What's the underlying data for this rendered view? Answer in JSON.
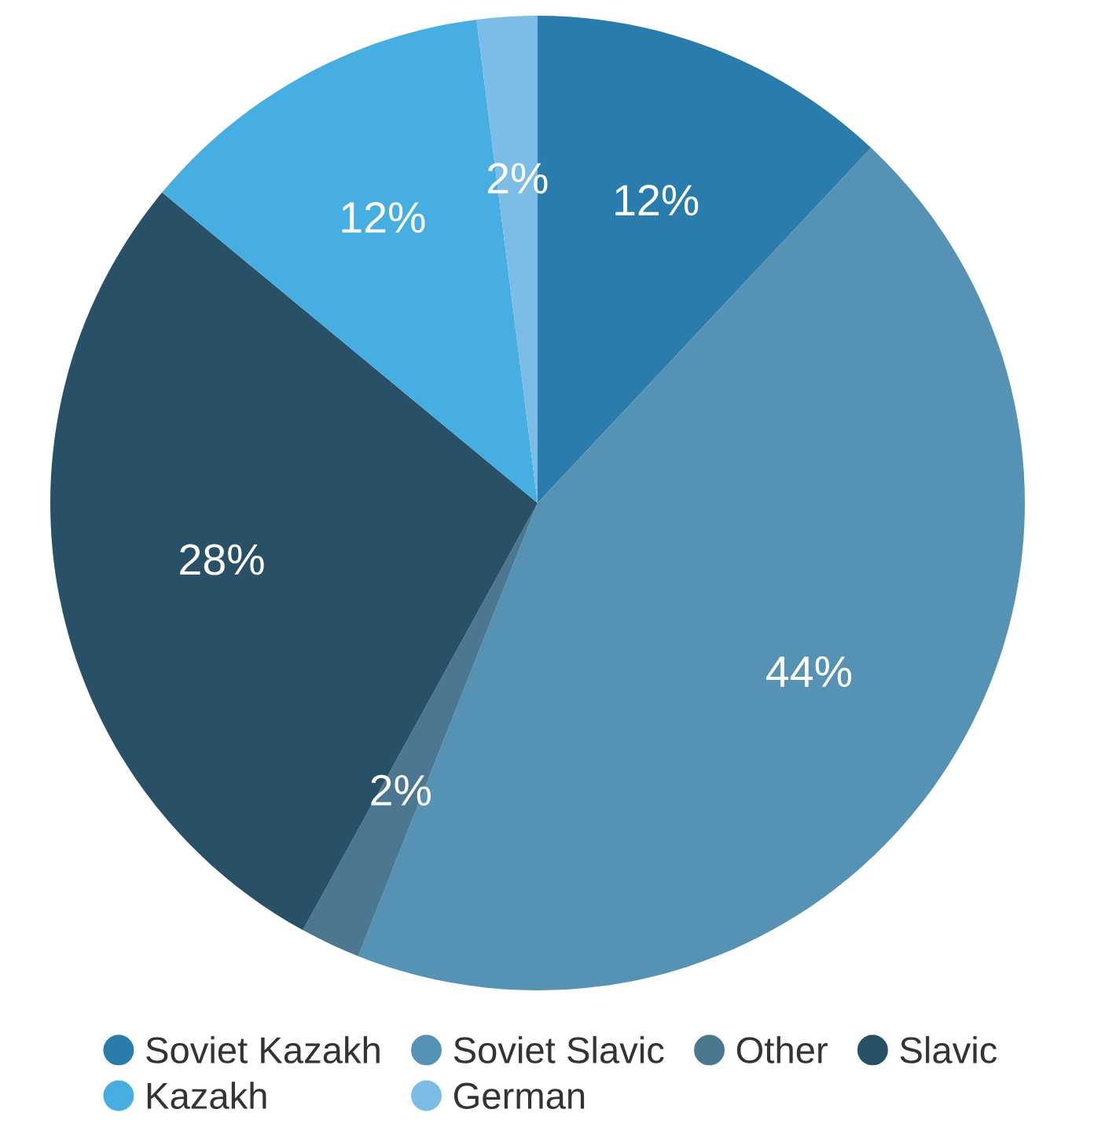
{
  "chart_data": {
    "type": "pie",
    "categories": [
      "Soviet Kazakh",
      "Soviet Slavic",
      "Other",
      "Slavic",
      "Kazakh",
      "German"
    ],
    "values": [
      12,
      44,
      2,
      28,
      12,
      2
    ],
    "colors": [
      "#2a7cad",
      "#5592b3",
      "#4b7790",
      "#285066",
      "#46aee0",
      "#7bbde6"
    ],
    "value_labels": [
      "12%",
      "44%",
      "2%",
      "28%",
      "12%",
      "2%"
    ],
    "legend": "bottom"
  }
}
